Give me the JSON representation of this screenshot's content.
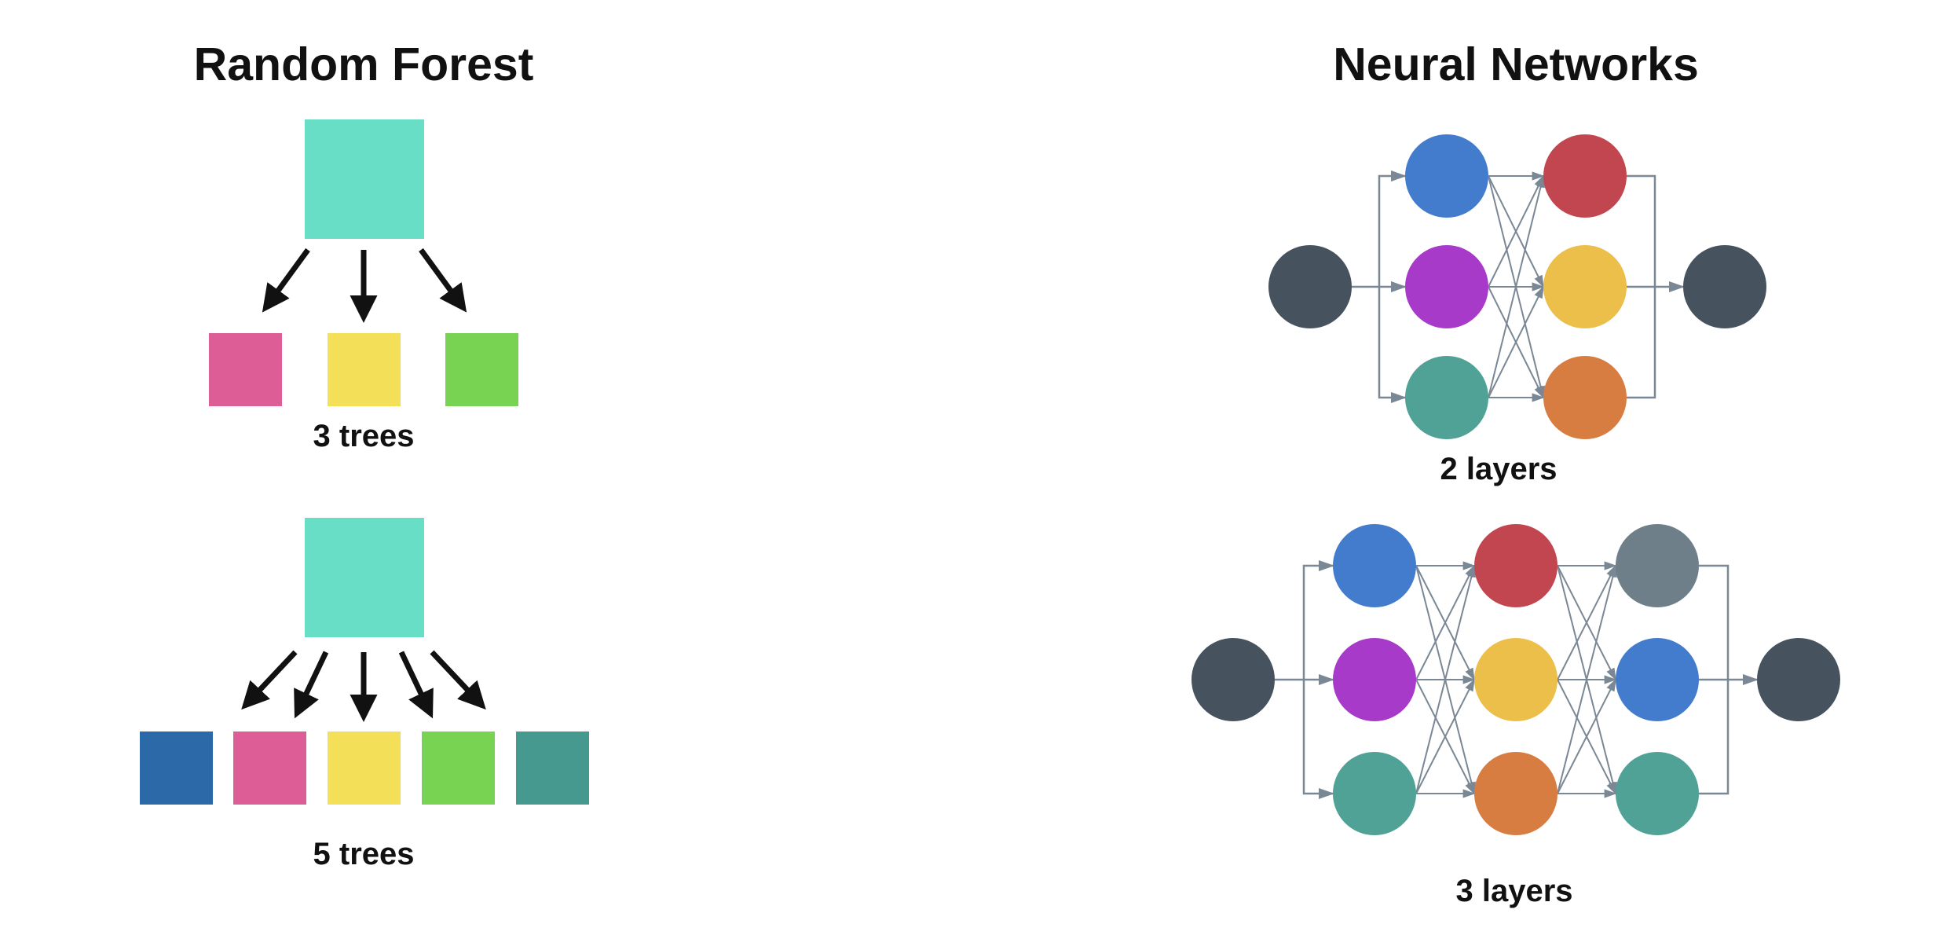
{
  "random_forest": {
    "title": "Random Forest",
    "examples": [
      {
        "caption": "3 trees",
        "root_color": "#68dec6",
        "tree_colors": [
          "#dd5e97",
          "#f3df58",
          "#79d353"
        ]
      },
      {
        "caption": "5 trees",
        "root_color": "#68dec6",
        "tree_colors": [
          "#2c69a9",
          "#dd5e97",
          "#f3df58",
          "#79d353",
          "#45998f"
        ]
      }
    ]
  },
  "neural_networks": {
    "title": "Neural Networks",
    "examples": [
      {
        "caption": "2 layers",
        "input_color": "#46535f",
        "output_color": "#46535f",
        "layers": [
          [
            "#437ccd",
            "#a73ac8",
            "#4fa295"
          ],
          [
            "#c2464f",
            "#ecbe4a",
            "#d77d41"
          ]
        ]
      },
      {
        "caption": "3 layers",
        "input_color": "#46535f",
        "output_color": "#46535f",
        "layers": [
          [
            "#437ccd",
            "#a73ac8",
            "#4fa295"
          ],
          [
            "#c2464f",
            "#ecbe4a",
            "#d77d41"
          ],
          [
            "#6f7f8a",
            "#437ccd",
            "#4fa295"
          ]
        ]
      }
    ]
  },
  "colors": {
    "arrow": "#111111",
    "connection": "#7a8794"
  }
}
